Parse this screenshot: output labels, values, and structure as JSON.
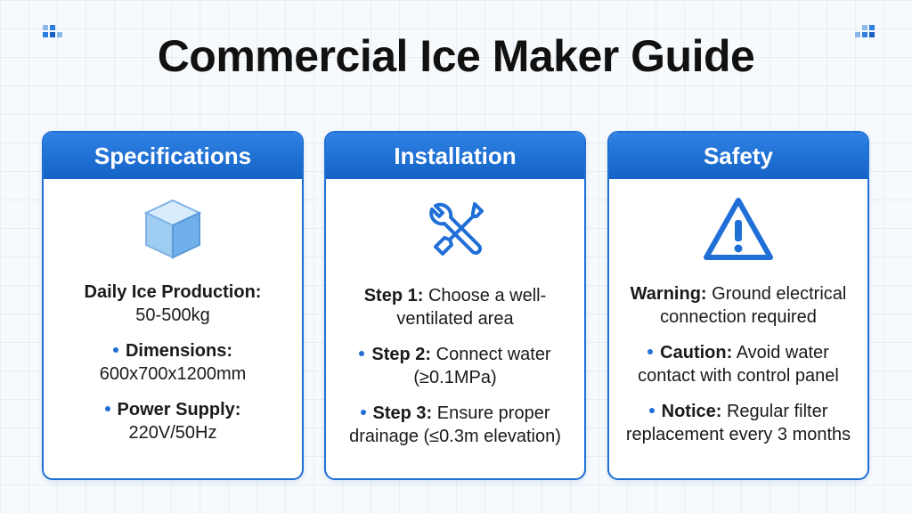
{
  "header": {
    "title": "Commercial Ice Maker Guide"
  },
  "cards": [
    {
      "title": "Specifications",
      "items": [
        {
          "label": "Daily Ice Production:",
          "text": "50-500kg"
        },
        {
          "label": "Dimensions:",
          "text": "600x700x1200mm"
        },
        {
          "label": "Power Supply:",
          "text": "220V/50Hz"
        }
      ]
    },
    {
      "title": "Installation",
      "items": [
        {
          "label": "Step 1:",
          "text": "Choose a well-ventilated area"
        },
        {
          "label": "Step 2:",
          "text": "Connect water (≥0.1MPa)"
        },
        {
          "label": "Step 3:",
          "text": "Ensure proper drainage (≤0.3m elevation)"
        }
      ]
    },
    {
      "title": "Safety",
      "items": [
        {
          "label": "Warning:",
          "text": "Ground electrical connection required"
        },
        {
          "label": "Caution:",
          "text": "Avoid water contact with control panel"
        },
        {
          "label": "Notice:",
          "text": "Regular filter replacement every 3 months"
        }
      ]
    }
  ]
}
